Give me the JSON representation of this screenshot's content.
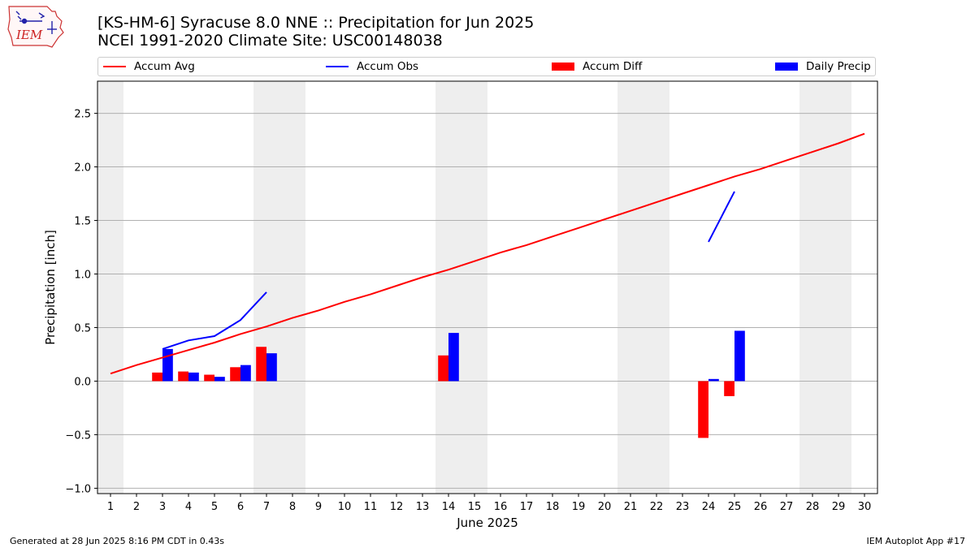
{
  "header": {
    "title_line1": "[KS-HM-6] Syracuse 8.0 NNE :: Precipitation for Jun 2025",
    "title_line2": "NCEI 1991-2020 Climate Site: USC00148038",
    "logo_text": "IEM"
  },
  "footer": {
    "left": "Generated at 28 Jun 2025 8:16 PM CDT in 0.43s",
    "right": "IEM Autoplot App #17"
  },
  "legend": [
    {
      "label": "Accum Avg",
      "kind": "line",
      "color": "#ff0000"
    },
    {
      "label": "Accum Obs",
      "kind": "line",
      "color": "#0000ff"
    },
    {
      "label": "Accum Diff",
      "kind": "box",
      "color": "#ff0000"
    },
    {
      "label": "Daily Precip",
      "kind": "box",
      "color": "#0000ff"
    }
  ],
  "chart_data": {
    "type": "bar",
    "xlabel": "June 2025",
    "ylabel": "Precipitation [inch]",
    "xlim": [
      0.5,
      30.5
    ],
    "ylim": [
      -1.05,
      2.8
    ],
    "yticks": [
      -1.0,
      -0.5,
      0.0,
      0.5,
      1.0,
      1.5,
      2.0,
      2.5
    ],
    "ytick_labels": [
      "−1.0",
      "−0.5",
      "0.0",
      "0.5",
      "1.0",
      "1.5",
      "2.0",
      "2.5"
    ],
    "x": [
      1,
      2,
      3,
      4,
      5,
      6,
      7,
      8,
      9,
      10,
      11,
      12,
      13,
      14,
      15,
      16,
      17,
      18,
      19,
      20,
      21,
      22,
      23,
      24,
      25,
      26,
      27,
      28,
      29,
      30
    ],
    "weekend_days": [
      1,
      7,
      8,
      14,
      15,
      21,
      22,
      28,
      29
    ],
    "grid": "horizontal",
    "legend_position": "top",
    "colors": {
      "avg": "#ff0000",
      "obs": "#0000ff",
      "diff": "#ff0000",
      "precip": "#0000ff",
      "weekend": "#eeeeee",
      "grid": "#b0b0b0"
    },
    "series": [
      {
        "name": "Accum Avg",
        "kind": "line",
        "values": [
          0.07,
          0.15,
          0.22,
          0.29,
          0.36,
          0.44,
          0.51,
          0.59,
          0.66,
          0.74,
          0.81,
          0.89,
          0.97,
          1.04,
          1.12,
          1.2,
          1.27,
          1.35,
          1.43,
          1.51,
          1.59,
          1.67,
          1.75,
          1.83,
          1.91,
          1.98,
          2.06,
          2.14,
          2.22,
          2.31
        ]
      },
      {
        "name": "Accum Obs",
        "kind": "line",
        "values": [
          null,
          null,
          0.3,
          0.38,
          0.42,
          0.57,
          0.83,
          null,
          null,
          null,
          null,
          null,
          null,
          null,
          null,
          null,
          null,
          null,
          null,
          null,
          null,
          null,
          null,
          1.3,
          1.77,
          null,
          null,
          null,
          null,
          null
        ]
      },
      {
        "name": "Accum Diff",
        "kind": "bar",
        "values": [
          null,
          null,
          0.08,
          0.09,
          0.06,
          0.13,
          0.32,
          null,
          null,
          null,
          null,
          null,
          null,
          0.24,
          null,
          null,
          null,
          null,
          null,
          null,
          null,
          null,
          null,
          -0.53,
          -0.14,
          null,
          null,
          null,
          null,
          null
        ]
      },
      {
        "name": "Daily Precip",
        "kind": "bar",
        "values": [
          null,
          null,
          0.3,
          0.08,
          0.04,
          0.15,
          0.26,
          null,
          null,
          null,
          null,
          null,
          null,
          0.45,
          null,
          null,
          null,
          null,
          null,
          null,
          null,
          null,
          null,
          0.02,
          0.47,
          null,
          null,
          null,
          null,
          null
        ]
      }
    ]
  }
}
